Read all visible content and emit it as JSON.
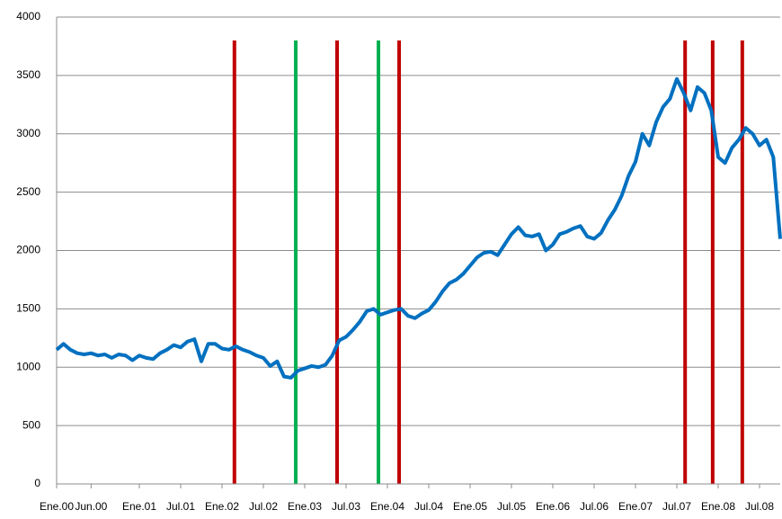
{
  "chart_data": {
    "type": "line",
    "categories": [
      "Ene.00",
      null,
      null,
      null,
      null,
      "Jun.00",
      null,
      null,
      null,
      null,
      null,
      null,
      "Ene.01",
      null,
      null,
      null,
      null,
      null,
      "Jul.01",
      null,
      null,
      null,
      null,
      null,
      "Ene.02",
      null,
      null,
      null,
      null,
      null,
      "Jul.02",
      null,
      null,
      null,
      null,
      null,
      "Ene.03",
      null,
      null,
      null,
      null,
      null,
      "Jul.03",
      null,
      null,
      null,
      null,
      null,
      "Ene.04",
      null,
      null,
      null,
      null,
      null,
      "Jul.04",
      null,
      null,
      null,
      null,
      null,
      "Ene.05",
      null,
      null,
      null,
      null,
      null,
      "Jul.05",
      null,
      null,
      null,
      null,
      null,
      "Ene.06",
      null,
      null,
      null,
      null,
      null,
      "Jul.06",
      null,
      null,
      null,
      null,
      null,
      "Ene.07",
      null,
      null,
      null,
      null,
      null,
      "Jul.07",
      null,
      null,
      null,
      null,
      null,
      "Ene.08",
      null,
      null,
      null,
      null,
      null,
      "Jul.08",
      null,
      null,
      null
    ],
    "series": [
      {
        "color": "#0070c0",
        "values": [
          1150,
          1200,
          1150,
          1120,
          1110,
          1120,
          1100,
          1110,
          1080,
          1110,
          1100,
          1060,
          1100,
          1080,
          1070,
          1120,
          1150,
          1190,
          1170,
          1220,
          1240,
          1050,
          1200,
          1200,
          1160,
          1150,
          1180,
          1150,
          1130,
          1100,
          1080,
          1010,
          1050,
          920,
          910,
          970,
          990,
          1010,
          1000,
          1020,
          1100,
          1230,
          1260,
          1320,
          1390,
          1480,
          1500,
          1450,
          1470,
          1490,
          1500,
          1440,
          1420,
          1460,
          1490,
          1560,
          1650,
          1720,
          1750,
          1800,
          1870,
          1940,
          1980,
          1990,
          1960,
          2050,
          2140,
          2200,
          2130,
          2120,
          2140,
          2000,
          2050,
          2140,
          2160,
          2190,
          2210,
          2120,
          2100,
          2150,
          2260,
          2350,
          2470,
          2640,
          2760,
          3000,
          2900,
          3100,
          3230,
          3300,
          3470,
          3350,
          3200,
          3400,
          3350,
          3200,
          2800,
          2750,
          2880,
          2950,
          3050,
          3000,
          2900,
          2950,
          2800,
          2100
        ]
      }
    ],
    "vlines": [
      {
        "color": "#c00000",
        "top": 3800,
        "x": [
          25.8,
          40.7,
          49.7,
          91.2,
          95.2,
          99.5
        ]
      },
      {
        "color": "#00b050",
        "top": 3800,
        "x": [
          34.7,
          46.7
        ]
      }
    ],
    "ylim": [
      0,
      4000
    ],
    "yticks": [
      0,
      500,
      1000,
      1500,
      2000,
      2500,
      3000,
      3500,
      4000
    ],
    "grid": true
  }
}
